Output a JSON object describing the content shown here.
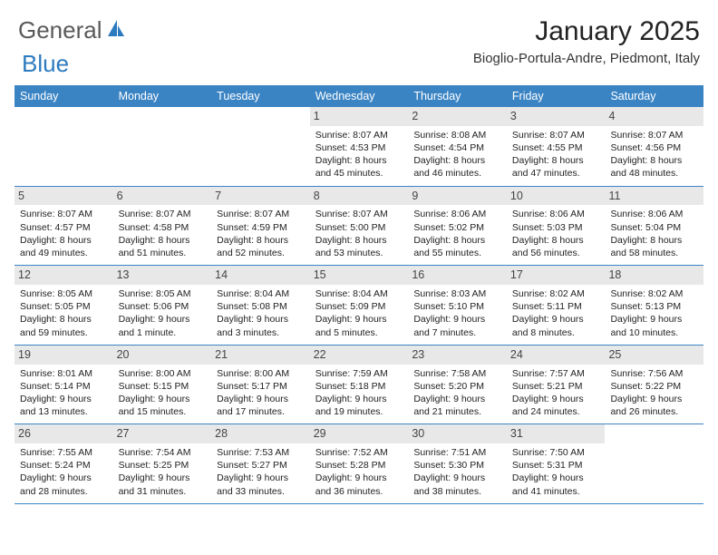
{
  "logo": {
    "text1": "General",
    "text2": "Blue",
    "text1_color": "#5a5a5a",
    "text2_color": "#2d7bbf"
  },
  "title": "January 2025",
  "location": "Bioglio-Portula-Andre, Piedmont, Italy",
  "colors": {
    "header_bg": "#3b84c4",
    "header_text": "#ffffff",
    "daynum_bg": "#e8e8e8",
    "row_border": "#3b84c4",
    "body_text": "#222222"
  },
  "weekdays": [
    "Sunday",
    "Monday",
    "Tuesday",
    "Wednesday",
    "Thursday",
    "Friday",
    "Saturday"
  ],
  "weeks": [
    [
      {
        "n": "",
        "sunrise": "",
        "sunset": "",
        "daylight": ""
      },
      {
        "n": "",
        "sunrise": "",
        "sunset": "",
        "daylight": ""
      },
      {
        "n": "",
        "sunrise": "",
        "sunset": "",
        "daylight": ""
      },
      {
        "n": "1",
        "sunrise": "Sunrise: 8:07 AM",
        "sunset": "Sunset: 4:53 PM",
        "daylight": "Daylight: 8 hours and 45 minutes."
      },
      {
        "n": "2",
        "sunrise": "Sunrise: 8:08 AM",
        "sunset": "Sunset: 4:54 PM",
        "daylight": "Daylight: 8 hours and 46 minutes."
      },
      {
        "n": "3",
        "sunrise": "Sunrise: 8:07 AM",
        "sunset": "Sunset: 4:55 PM",
        "daylight": "Daylight: 8 hours and 47 minutes."
      },
      {
        "n": "4",
        "sunrise": "Sunrise: 8:07 AM",
        "sunset": "Sunset: 4:56 PM",
        "daylight": "Daylight: 8 hours and 48 minutes."
      }
    ],
    [
      {
        "n": "5",
        "sunrise": "Sunrise: 8:07 AM",
        "sunset": "Sunset: 4:57 PM",
        "daylight": "Daylight: 8 hours and 49 minutes."
      },
      {
        "n": "6",
        "sunrise": "Sunrise: 8:07 AM",
        "sunset": "Sunset: 4:58 PM",
        "daylight": "Daylight: 8 hours and 51 minutes."
      },
      {
        "n": "7",
        "sunrise": "Sunrise: 8:07 AM",
        "sunset": "Sunset: 4:59 PM",
        "daylight": "Daylight: 8 hours and 52 minutes."
      },
      {
        "n": "8",
        "sunrise": "Sunrise: 8:07 AM",
        "sunset": "Sunset: 5:00 PM",
        "daylight": "Daylight: 8 hours and 53 minutes."
      },
      {
        "n": "9",
        "sunrise": "Sunrise: 8:06 AM",
        "sunset": "Sunset: 5:02 PM",
        "daylight": "Daylight: 8 hours and 55 minutes."
      },
      {
        "n": "10",
        "sunrise": "Sunrise: 8:06 AM",
        "sunset": "Sunset: 5:03 PM",
        "daylight": "Daylight: 8 hours and 56 minutes."
      },
      {
        "n": "11",
        "sunrise": "Sunrise: 8:06 AM",
        "sunset": "Sunset: 5:04 PM",
        "daylight": "Daylight: 8 hours and 58 minutes."
      }
    ],
    [
      {
        "n": "12",
        "sunrise": "Sunrise: 8:05 AM",
        "sunset": "Sunset: 5:05 PM",
        "daylight": "Daylight: 8 hours and 59 minutes."
      },
      {
        "n": "13",
        "sunrise": "Sunrise: 8:05 AM",
        "sunset": "Sunset: 5:06 PM",
        "daylight": "Daylight: 9 hours and 1 minute."
      },
      {
        "n": "14",
        "sunrise": "Sunrise: 8:04 AM",
        "sunset": "Sunset: 5:08 PM",
        "daylight": "Daylight: 9 hours and 3 minutes."
      },
      {
        "n": "15",
        "sunrise": "Sunrise: 8:04 AM",
        "sunset": "Sunset: 5:09 PM",
        "daylight": "Daylight: 9 hours and 5 minutes."
      },
      {
        "n": "16",
        "sunrise": "Sunrise: 8:03 AM",
        "sunset": "Sunset: 5:10 PM",
        "daylight": "Daylight: 9 hours and 7 minutes."
      },
      {
        "n": "17",
        "sunrise": "Sunrise: 8:02 AM",
        "sunset": "Sunset: 5:11 PM",
        "daylight": "Daylight: 9 hours and 8 minutes."
      },
      {
        "n": "18",
        "sunrise": "Sunrise: 8:02 AM",
        "sunset": "Sunset: 5:13 PM",
        "daylight": "Daylight: 9 hours and 10 minutes."
      }
    ],
    [
      {
        "n": "19",
        "sunrise": "Sunrise: 8:01 AM",
        "sunset": "Sunset: 5:14 PM",
        "daylight": "Daylight: 9 hours and 13 minutes."
      },
      {
        "n": "20",
        "sunrise": "Sunrise: 8:00 AM",
        "sunset": "Sunset: 5:15 PM",
        "daylight": "Daylight: 9 hours and 15 minutes."
      },
      {
        "n": "21",
        "sunrise": "Sunrise: 8:00 AM",
        "sunset": "Sunset: 5:17 PM",
        "daylight": "Daylight: 9 hours and 17 minutes."
      },
      {
        "n": "22",
        "sunrise": "Sunrise: 7:59 AM",
        "sunset": "Sunset: 5:18 PM",
        "daylight": "Daylight: 9 hours and 19 minutes."
      },
      {
        "n": "23",
        "sunrise": "Sunrise: 7:58 AM",
        "sunset": "Sunset: 5:20 PM",
        "daylight": "Daylight: 9 hours and 21 minutes."
      },
      {
        "n": "24",
        "sunrise": "Sunrise: 7:57 AM",
        "sunset": "Sunset: 5:21 PM",
        "daylight": "Daylight: 9 hours and 24 minutes."
      },
      {
        "n": "25",
        "sunrise": "Sunrise: 7:56 AM",
        "sunset": "Sunset: 5:22 PM",
        "daylight": "Daylight: 9 hours and 26 minutes."
      }
    ],
    [
      {
        "n": "26",
        "sunrise": "Sunrise: 7:55 AM",
        "sunset": "Sunset: 5:24 PM",
        "daylight": "Daylight: 9 hours and 28 minutes."
      },
      {
        "n": "27",
        "sunrise": "Sunrise: 7:54 AM",
        "sunset": "Sunset: 5:25 PM",
        "daylight": "Daylight: 9 hours and 31 minutes."
      },
      {
        "n": "28",
        "sunrise": "Sunrise: 7:53 AM",
        "sunset": "Sunset: 5:27 PM",
        "daylight": "Daylight: 9 hours and 33 minutes."
      },
      {
        "n": "29",
        "sunrise": "Sunrise: 7:52 AM",
        "sunset": "Sunset: 5:28 PM",
        "daylight": "Daylight: 9 hours and 36 minutes."
      },
      {
        "n": "30",
        "sunrise": "Sunrise: 7:51 AM",
        "sunset": "Sunset: 5:30 PM",
        "daylight": "Daylight: 9 hours and 38 minutes."
      },
      {
        "n": "31",
        "sunrise": "Sunrise: 7:50 AM",
        "sunset": "Sunset: 5:31 PM",
        "daylight": "Daylight: 9 hours and 41 minutes."
      },
      {
        "n": "",
        "sunrise": "",
        "sunset": "",
        "daylight": ""
      }
    ]
  ]
}
